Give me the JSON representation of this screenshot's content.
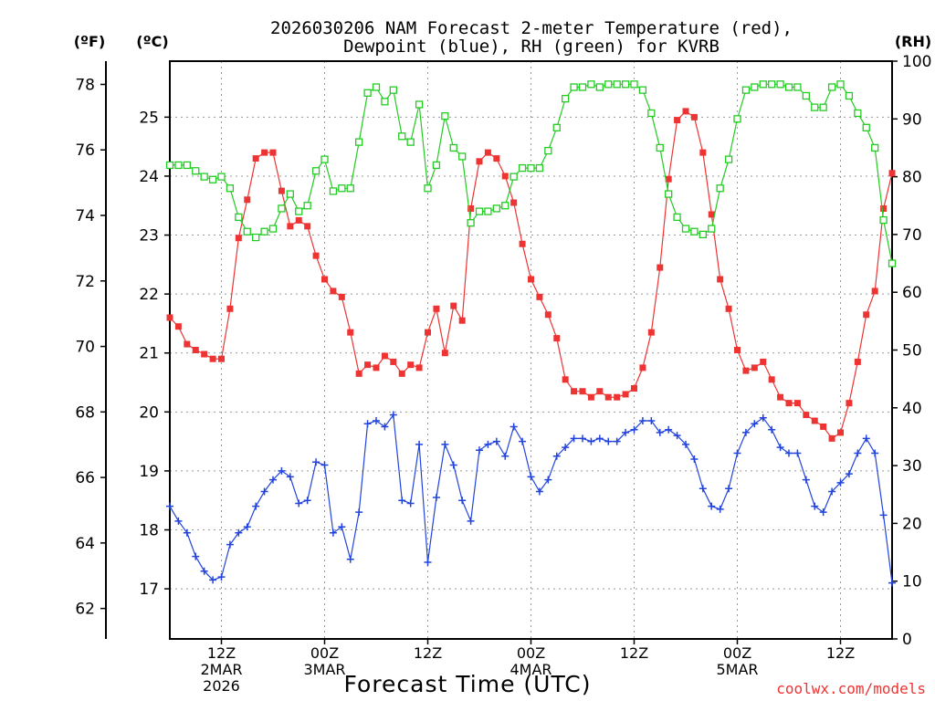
{
  "chart_data": {
    "type": "line",
    "title": [
      "2026030206 NAM Forecast 2-meter Temperature (red),",
      "Dewpoint (blue), RH (green) for KVRB"
    ],
    "xlabel": "Forecast Time (UTC)",
    "credit": "coolwx.com/models",
    "unit_labels": {
      "fahrenheit": "(ºF)",
      "celsius": "(ºC)",
      "rh": "(RH)"
    },
    "x_ticks": [
      {
        "hour": 6,
        "label": [
          "12Z",
          "2MAR",
          "2026"
        ]
      },
      {
        "hour": 18,
        "label": [
          "00Z",
          "3MAR"
        ]
      },
      {
        "hour": 30,
        "label": [
          "12Z"
        ]
      },
      {
        "hour": 42,
        "label": [
          "00Z",
          "4MAR"
        ]
      },
      {
        "hour": 54,
        "label": [
          "12Z"
        ]
      },
      {
        "hour": 66,
        "label": [
          "00Z",
          "5MAR"
        ]
      },
      {
        "hour": 78,
        "label": [
          "12Z"
        ]
      }
    ],
    "x_range_hours": [
      0,
      84
    ],
    "celsius_range": [
      16.15,
      25.95
    ],
    "celsius_ticks": [
      17,
      18,
      19,
      20,
      21,
      22,
      23,
      24,
      25
    ],
    "fahrenheit_ticks": [
      62,
      64,
      66,
      68,
      70,
      72,
      74,
      76,
      78
    ],
    "rh_range": [
      0,
      100
    ],
    "rh_ticks": [
      0,
      10,
      20,
      30,
      40,
      50,
      60,
      70,
      80,
      90,
      100
    ],
    "grid": true,
    "series": [
      {
        "name": "Temperature",
        "unit": "C",
        "color": "#ee3333",
        "marker": "filled-square",
        "values": [
          21.6,
          21.45,
          21.15,
          21.05,
          20.98,
          20.9,
          20.9,
          21.75,
          22.95,
          23.6,
          24.3,
          24.4,
          24.4,
          23.75,
          23.15,
          23.25,
          23.15,
          22.65,
          22.25,
          22.05,
          21.95,
          21.35,
          20.65,
          20.8,
          20.75,
          20.95,
          20.85,
          20.65,
          20.8,
          20.75,
          21.35,
          21.75,
          21.0,
          21.8,
          21.55,
          23.45,
          24.25,
          24.4,
          24.3,
          24.0,
          23.55,
          22.85,
          22.25,
          21.95,
          21.65,
          21.25,
          20.55,
          20.35,
          20.35,
          20.25,
          20.35,
          20.25,
          20.25,
          20.3,
          20.4,
          20.75,
          21.35,
          22.45,
          23.95,
          24.95,
          25.1,
          25.0,
          24.4,
          23.35,
          22.25,
          21.75,
          21.05,
          20.7,
          20.75,
          20.85,
          20.55,
          20.25,
          20.15,
          20.15,
          19.95,
          19.85,
          19.75,
          19.55,
          19.65,
          20.15,
          20.85,
          21.65,
          22.05,
          23.45,
          24.05
        ]
      },
      {
        "name": "Dewpoint",
        "unit": "C",
        "color": "#2244dd",
        "marker": "plus",
        "values": [
          18.4,
          18.15,
          17.95,
          17.55,
          17.3,
          17.15,
          17.2,
          17.75,
          17.95,
          18.05,
          18.4,
          18.65,
          18.85,
          19.0,
          18.9,
          18.45,
          18.5,
          19.15,
          19.1,
          17.95,
          18.05,
          17.5,
          18.3,
          19.8,
          19.85,
          19.75,
          19.95,
          18.5,
          18.45,
          19.45,
          17.45,
          18.55,
          19.45,
          19.1,
          18.5,
          18.15,
          19.35,
          19.45,
          19.5,
          19.25,
          19.75,
          19.5,
          18.9,
          18.65,
          18.85,
          19.25,
          19.4,
          19.55,
          19.55,
          19.5,
          19.55,
          19.5,
          19.5,
          19.65,
          19.7,
          19.85,
          19.85,
          19.65,
          19.7,
          19.6,
          19.45,
          19.2,
          18.7,
          18.4,
          18.35,
          18.7,
          19.3,
          19.65,
          19.8,
          19.9,
          19.7,
          19.4,
          19.3,
          19.3,
          18.85,
          18.4,
          18.3,
          18.65,
          18.8,
          18.95,
          19.3,
          19.55,
          19.3,
          18.25,
          17.1
        ]
      },
      {
        "name": "RH",
        "unit": "%",
        "color": "#22cc22",
        "marker": "open-square",
        "values": [
          82,
          82,
          82,
          81,
          80,
          79.5,
          80,
          78,
          73,
          70.5,
          69.5,
          70.5,
          71,
          74.5,
          77,
          74,
          75,
          81,
          83,
          77.5,
          78,
          78,
          86,
          94.5,
          95.5,
          93,
          95,
          87,
          86,
          92.5,
          78,
          82,
          90.5,
          85,
          83.5,
          72,
          74,
          74,
          74.5,
          75,
          80,
          81.5,
          81.5,
          81.5,
          84.5,
          88.5,
          93.5,
          95.5,
          95.5,
          96,
          95.5,
          96,
          96,
          96,
          96,
          95,
          91,
          85,
          77,
          73,
          71,
          70.5,
          70,
          71,
          78,
          83,
          90,
          95,
          95.5,
          96,
          96,
          96,
          95.5,
          95.5,
          94,
          92,
          92,
          95.5,
          96,
          94,
          91,
          88.5,
          85,
          72.5,
          65
        ]
      }
    ]
  }
}
